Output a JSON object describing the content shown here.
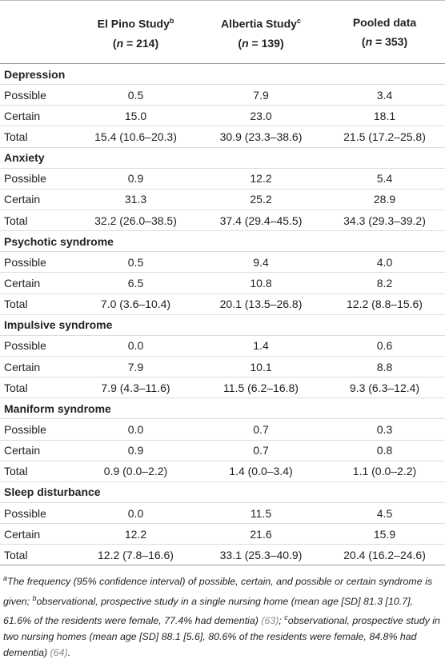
{
  "table": {
    "columns": [
      {
        "name": "El Pino Study",
        "sup": "b",
        "sample": [
          "(",
          "n",
          " = 214)"
        ]
      },
      {
        "name": "Albertia Study",
        "sup": "c",
        "sample": [
          "(",
          "n",
          " = 139)"
        ]
      },
      {
        "name": "Pooled data",
        "sample": [
          "(",
          "n",
          " = 353)"
        ]
      }
    ],
    "sections": [
      {
        "title": "Depression",
        "rows": [
          [
            "Possible",
            "0.5",
            "7.9",
            "3.4"
          ],
          [
            "Certain",
            "15.0",
            "23.0",
            "18.1"
          ],
          [
            "Total",
            "15.4 (10.6–20.3)",
            "30.9 (23.3–38.6)",
            "21.5 (17.2–25.8)"
          ]
        ]
      },
      {
        "title": "Anxiety",
        "rows": [
          [
            "Possible",
            "0.9",
            "12.2",
            "5.4"
          ],
          [
            "Certain",
            "31.3",
            "25.2",
            "28.9"
          ],
          [
            "Total",
            "32.2 (26.0–38.5)",
            "37.4 (29.4–45.5)",
            "34.3 (29.3–39.2)"
          ]
        ]
      },
      {
        "title": "Psychotic syndrome",
        "rows": [
          [
            "Possible",
            "0.5",
            "9.4",
            "4.0"
          ],
          [
            "Certain",
            "6.5",
            "10.8",
            "8.2"
          ],
          [
            "Total",
            "7.0 (3.6–10.4)",
            "20.1 (13.5–26.8)",
            "12.2 (8.8–15.6)"
          ]
        ]
      },
      {
        "title": "Impulsive syndrome",
        "rows": [
          [
            "Possible",
            "0.0",
            "1.4",
            "0.6"
          ],
          [
            "Certain",
            "7.9",
            "10.1",
            "8.8"
          ],
          [
            "Total",
            "7.9 (4.3–11.6)",
            "11.5 (6.2–16.8)",
            "9.3 (6.3–12.4)"
          ]
        ]
      },
      {
        "title": "Maniform syndrome",
        "rows": [
          [
            "Possible",
            "0.0",
            "0.7",
            "0.3"
          ],
          [
            "Certain",
            "0.9",
            "0.7",
            "0.8"
          ],
          [
            "Total",
            "0.9 (0.0–2.2)",
            "1.4 (0.0–3.4)",
            "1.1 (0.0–2.2)"
          ]
        ]
      },
      {
        "title": "Sleep disturbance",
        "rows": [
          [
            "Possible",
            "0.0",
            "11.5",
            "4.5"
          ],
          [
            "Certain",
            "12.2",
            "21.6",
            "15.9"
          ],
          [
            "Total",
            "12.2 (7.8–16.6)",
            "33.1 (25.3–40.9)",
            "20.4 (16.2–24.6)"
          ]
        ]
      }
    ]
  },
  "footnote": [
    {
      "kind": "sup",
      "text": "a"
    },
    {
      "kind": "text",
      "text": "The frequency (95% confidence interval) of possible, certain, and possible or certain syndrome is given; "
    },
    {
      "kind": "sup",
      "text": "b"
    },
    {
      "kind": "text",
      "text": "observational, prospective study in a single nursing home (mean age [SD] 81.3 [10.7], 61.6% of the residents were female, 77.4% had dementia) "
    },
    {
      "kind": "ref",
      "text": "(63)"
    },
    {
      "kind": "text",
      "text": "; "
    },
    {
      "kind": "sup",
      "text": "c"
    },
    {
      "kind": "text",
      "text": "observational, prospective study in two nursing homes (mean age [SD] 88.1 [5.6], 80.6% of the residents were female, 84.8% had dementia) "
    },
    {
      "kind": "ref",
      "text": "(64)"
    },
    {
      "kind": "text",
      "text": "."
    }
  ]
}
